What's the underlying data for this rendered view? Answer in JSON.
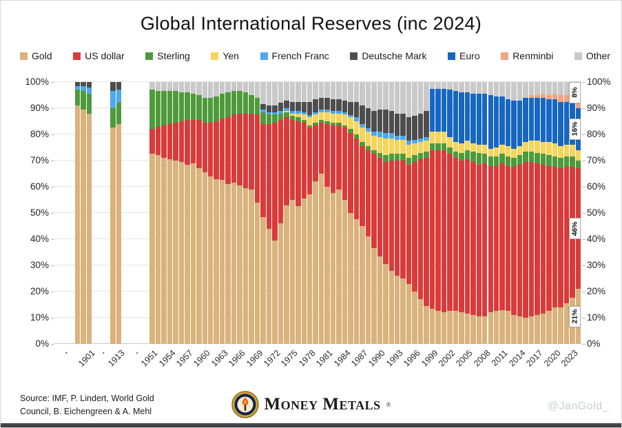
{
  "title": "Global International Reserves (inc 2024)",
  "footer": {
    "source_line1": "Source: IMF, P. Lindert, World Gold",
    "source_line2": "Council, B. Eichengreen & A. Mehl",
    "brand": "Money Metals",
    "registered": "®",
    "watermark": "@JanGold_"
  },
  "chart_data": {
    "type": "bar",
    "subtype": "stacked-100-percent",
    "unit": "%",
    "ylim": [
      0,
      100
    ],
    "grid": "horizontal",
    "legend_position": "top",
    "y_ticks": [
      "0%",
      "10%",
      "20%",
      "30%",
      "40%",
      "50%",
      "60%",
      "70%",
      "80%",
      "90%",
      "100%"
    ],
    "gap_label": "-",
    "x_tick_labels": [
      "1901",
      "1913",
      "1951",
      "1954",
      "1957",
      "1960",
      "1963",
      "1966",
      "1969",
      "1972",
      "1975",
      "1978",
      "1981",
      "1984",
      "1987",
      "1990",
      "1993",
      "1996",
      "1999",
      "2002",
      "2005",
      "2008",
      "2011",
      "2014",
      "2017",
      "2020",
      "2023"
    ],
    "years": [
      1899,
      1900,
      1901,
      1912,
      1913,
      1951,
      1952,
      1953,
      1954,
      1955,
      1956,
      1957,
      1958,
      1959,
      1960,
      1961,
      1962,
      1963,
      1964,
      1965,
      1966,
      1967,
      1968,
      1969,
      1970,
      1971,
      1972,
      1973,
      1974,
      1975,
      1976,
      1977,
      1978,
      1979,
      1980,
      1981,
      1982,
      1983,
      1984,
      1985,
      1986,
      1987,
      1988,
      1989,
      1990,
      1991,
      1992,
      1993,
      1994,
      1995,
      1996,
      1997,
      1998,
      1999,
      2000,
      2001,
      2002,
      2003,
      2004,
      2005,
      2006,
      2007,
      2008,
      2009,
      2010,
      2011,
      2012,
      2013,
      2014,
      2015,
      2016,
      2017,
      2018,
      2019,
      2020,
      2021,
      2022,
      2023,
      2024
    ],
    "series": [
      {
        "name": "Gold",
        "color": "#D9B27C",
        "values": [
          91,
          89.5,
          88,
          82.5,
          84,
          72.5,
          72,
          71,
          70.5,
          70,
          69.5,
          68.5,
          69,
          67,
          65.5,
          64,
          63,
          62.5,
          61,
          61.5,
          60.5,
          59.5,
          59,
          54,
          48.5,
          44,
          39.5,
          46,
          53,
          55,
          52.5,
          55.5,
          57,
          62,
          65,
          60,
          57.5,
          59,
          55,
          50,
          47.5,
          45,
          41,
          36.5,
          33.5,
          30.5,
          28,
          26,
          25,
          23,
          20,
          17,
          14.5,
          13.5,
          12.5,
          12,
          12.5,
          12.5,
          12,
          11.5,
          11,
          10.5,
          10.5,
          12,
          12.5,
          13,
          12.5,
          11,
          10.5,
          10,
          10.5,
          11,
          11.5,
          12.5,
          14,
          14,
          15.5,
          17.5,
          21
        ]
      },
      {
        "name": "US dollar",
        "color": "#D93B3B",
        "values": [
          0,
          0,
          0,
          0,
          0,
          9.5,
          11,
          12.5,
          13.5,
          14.5,
          15.5,
          17,
          16.5,
          18.5,
          19,
          20.5,
          22,
          23.5,
          25.5,
          26,
          27.5,
          28.5,
          29,
          33.5,
          35.5,
          40,
          45,
          39.5,
          33.5,
          30.5,
          32.5,
          29,
          25.5,
          21.5,
          19.5,
          24,
          26,
          24.5,
          27.5,
          30.5,
          31,
          30.5,
          33,
          36,
          37.5,
          39,
          42,
          44,
          45,
          45.5,
          49.5,
          53.5,
          56.5,
          60.5,
          61.5,
          62,
          60,
          58.5,
          58,
          59,
          58.5,
          58,
          58.5,
          56,
          55.5,
          56,
          55.5,
          56.5,
          58,
          59.5,
          59,
          58,
          57,
          55.5,
          53.5,
          53,
          52,
          50,
          46
        ]
      },
      {
        "name": "Sterling",
        "color": "#4E9A3B",
        "values": [
          6,
          7,
          7.5,
          7.5,
          8,
          15,
          13.5,
          13,
          12.5,
          12,
          11,
          10.5,
          10,
          9.5,
          9.5,
          9.5,
          9.5,
          9.5,
          9.5,
          9,
          8.5,
          8,
          7,
          6.5,
          4.5,
          3.5,
          3,
          2.5,
          2,
          1.5,
          1.5,
          1,
          1,
          1,
          1,
          1,
          1,
          1,
          1,
          1.5,
          1.5,
          1.5,
          1.5,
          1.5,
          2,
          2.5,
          2.5,
          2.5,
          2.5,
          2.5,
          2.5,
          2.5,
          2.5,
          2.5,
          2.5,
          2.5,
          2.5,
          2.5,
          3,
          3.5,
          4,
          4.5,
          3.5,
          3.5,
          3.5,
          3.5,
          3.5,
          3.5,
          3.5,
          4,
          4,
          4,
          4,
          4,
          4,
          4,
          4,
          4,
          3
        ]
      },
      {
        "name": "Yen",
        "color": "#F6D55C",
        "values": [
          0,
          0,
          0,
          0,
          0,
          0,
          0,
          0,
          0,
          0,
          0,
          0,
          0,
          0,
          0,
          0,
          0,
          0,
          0,
          0,
          0,
          0,
          0,
          0,
          0,
          0,
          0,
          0,
          0.5,
          1,
          1.5,
          2,
          3,
          3,
          3,
          3.5,
          3.5,
          3.5,
          4,
          4.5,
          5,
          5.5,
          5.5,
          5.5,
          6,
          6.5,
          6,
          5.5,
          5.5,
          5,
          4.5,
          4,
          4,
          4.5,
          4.5,
          4.5,
          4,
          3.5,
          3.5,
          3.5,
          3,
          3,
          3.5,
          3,
          3.5,
          3.5,
          4,
          3.5,
          3.5,
          3.5,
          4,
          4.5,
          4.5,
          5,
          5,
          4.5,
          4.5,
          4.5,
          4
        ]
      },
      {
        "name": "French Franc",
        "color": "#4FA7F0",
        "values": [
          1.5,
          2,
          2.5,
          6.5,
          5,
          0,
          0,
          0,
          0,
          0,
          0,
          0,
          0,
          0,
          0,
          0,
          0,
          0,
          0,
          0,
          0,
          0,
          0,
          0,
          1,
          1,
          1,
          1,
          1,
          1,
          1,
          1,
          1,
          1,
          1,
          1,
          1,
          1,
          1,
          1,
          1.5,
          1.5,
          1.5,
          1.5,
          2,
          2,
          2,
          1.5,
          1.5,
          1.5,
          1.5,
          1.5,
          1.5,
          0,
          0,
          0,
          0,
          0,
          0,
          0,
          0,
          0,
          0,
          0,
          0,
          0,
          0,
          0,
          0,
          0,
          0,
          0,
          0,
          0,
          0,
          0,
          0,
          0,
          0
        ]
      },
      {
        "name": "Deutsche Mark",
        "color": "#4D4D4D",
        "values": [
          1.5,
          1.5,
          2,
          3.5,
          3,
          0,
          0,
          0,
          0,
          0,
          0,
          0,
          0,
          0,
          0,
          0,
          0,
          0,
          0,
          0,
          0,
          0,
          0,
          0,
          2,
          2.5,
          2.5,
          3,
          3,
          3.5,
          3.5,
          4,
          5,
          5,
          4.5,
          4.5,
          4.5,
          4.5,
          4.5,
          5,
          6,
          7,
          7.5,
          8,
          8.5,
          9,
          8.5,
          8.5,
          8.5,
          9,
          9,
          9.5,
          10,
          0,
          0,
          0,
          0,
          0,
          0,
          0,
          0,
          0,
          0,
          0,
          0,
          0,
          0,
          0,
          0,
          0,
          0,
          0,
          0,
          0,
          0,
          0,
          0,
          0,
          0
        ]
      },
      {
        "name": "Euro",
        "color": "#1667C1",
        "values": [
          0,
          0,
          0,
          0,
          0,
          0,
          0,
          0,
          0,
          0,
          0,
          0,
          0,
          0,
          0,
          0,
          0,
          0,
          0,
          0,
          0,
          0,
          0,
          0,
          0,
          0,
          0,
          0,
          0,
          0,
          0,
          0,
          0,
          0,
          0,
          0,
          0,
          0,
          0,
          0,
          0,
          0,
          0,
          0,
          0,
          0,
          0,
          0,
          0,
          0,
          0,
          0,
          0,
          16.5,
          16.5,
          16.5,
          18,
          19.5,
          19.5,
          18.5,
          19,
          19.5,
          19.5,
          20.5,
          19.5,
          18.5,
          18,
          18.5,
          17.5,
          17,
          16.5,
          16.5,
          17,
          16.5,
          17,
          17,
          16.5,
          16.5,
          16
        ]
      },
      {
        "name": "Renminbi",
        "color": "#F2A483",
        "values": [
          0,
          0,
          0,
          0,
          0,
          0,
          0,
          0,
          0,
          0,
          0,
          0,
          0,
          0,
          0,
          0,
          0,
          0,
          0,
          0,
          0,
          0,
          0,
          0,
          0,
          0,
          0,
          0,
          0,
          0,
          0,
          0,
          0,
          0,
          0,
          0,
          0,
          0,
          0,
          0,
          0,
          0,
          0,
          0,
          0,
          0,
          0,
          0,
          0,
          0,
          0,
          0,
          0,
          0,
          0,
          0,
          0,
          0,
          0,
          0,
          0,
          0,
          0,
          0,
          0,
          0,
          0,
          0,
          0,
          0,
          1,
          1,
          1.5,
          1.5,
          2,
          2.5,
          2.5,
          2.5,
          2
        ]
      },
      {
        "name": "Other",
        "color": "#C9C9C9",
        "values": [
          0,
          0,
          0,
          0,
          0,
          3,
          3.5,
          3.5,
          3.5,
          3.5,
          4,
          4,
          4.5,
          5,
          6,
          6,
          5.5,
          4.5,
          4,
          3.5,
          3.5,
          4,
          5,
          6,
          8.5,
          9,
          9,
          8,
          7,
          7.5,
          7.5,
          7.5,
          7.5,
          6.5,
          6,
          6,
          6.5,
          6.5,
          7,
          7.5,
          7.5,
          9,
          10,
          11,
          10.5,
          10.5,
          11,
          12,
          12,
          13.5,
          13,
          12,
          11,
          2.5,
          2.5,
          2.5,
          3,
          3.5,
          4,
          4,
          4.5,
          4.5,
          4.5,
          5,
          5.5,
          5.5,
          6.5,
          7,
          7,
          6,
          5,
          5,
          4.5,
          5,
          4.5,
          5,
          5,
          5,
          8
        ]
      }
    ],
    "annotations_last_bar": [
      {
        "label": "21%",
        "series": "Gold",
        "y_pct": 10.5
      },
      {
        "label": "46%",
        "series": "US dollar",
        "y_pct": 44
      },
      {
        "label": "16%",
        "series": "Euro",
        "y_pct": 82
      },
      {
        "label": "8%",
        "series": "Other",
        "y_pct": 96
      }
    ]
  }
}
